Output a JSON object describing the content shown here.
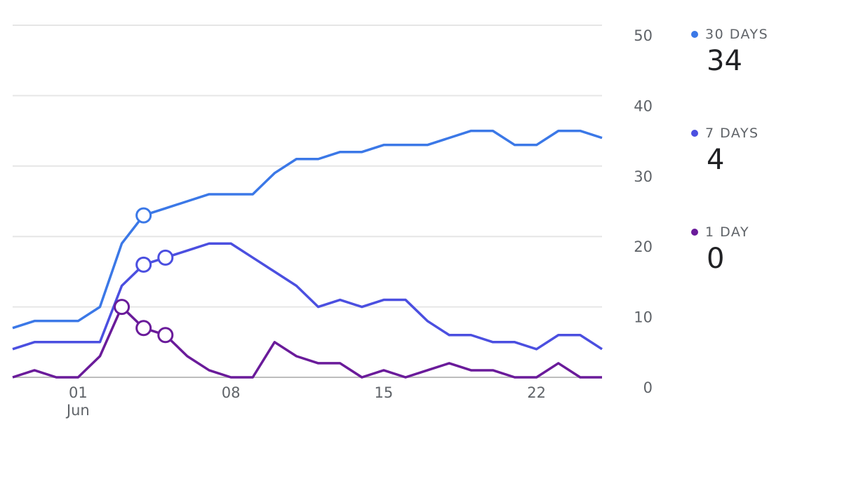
{
  "chart_data": {
    "type": "line",
    "categories": [
      null,
      null,
      null,
      "01\nJun",
      null,
      null,
      null,
      null,
      null,
      null,
      "08",
      null,
      null,
      null,
      null,
      null,
      null,
      "15",
      null,
      null,
      null,
      null,
      null,
      null,
      "22",
      null,
      null,
      null
    ],
    "series": [
      {
        "name": "30 DAYS",
        "current": 34,
        "color": "#3b78e7",
        "markers": [
          6
        ],
        "values": [
          7,
          8,
          8,
          8,
          10,
          19,
          23,
          24,
          25,
          26,
          26,
          26,
          29,
          31,
          31,
          32,
          32,
          33,
          33,
          33,
          34,
          35,
          35,
          33,
          33,
          35,
          35,
          34
        ]
      },
      {
        "name": "7 DAYS",
        "current": 4,
        "color": "#4b4fe0",
        "markers": [
          6,
          7
        ],
        "values": [
          4,
          5,
          5,
          5,
          5,
          13,
          16,
          17,
          18,
          19,
          19,
          17,
          15,
          13,
          10,
          11,
          10,
          11,
          11,
          8,
          6,
          6,
          5,
          5,
          4,
          6,
          6,
          4
        ]
      },
      {
        "name": "1 DAY",
        "current": 0,
        "color": "#6a1b9a",
        "markers": [
          5,
          6,
          7
        ],
        "values": [
          0,
          1,
          0,
          0,
          3,
          10,
          7,
          6,
          3,
          1,
          0,
          0,
          5,
          3,
          2,
          2,
          0,
          1,
          0,
          1,
          2,
          1,
          1,
          0,
          0,
          2,
          0,
          0
        ]
      }
    ],
    "ylim": [
      0,
      50
    ],
    "yticks": [
      0,
      10,
      20,
      30,
      40,
      50
    ],
    "grid": true,
    "legend": "right"
  }
}
